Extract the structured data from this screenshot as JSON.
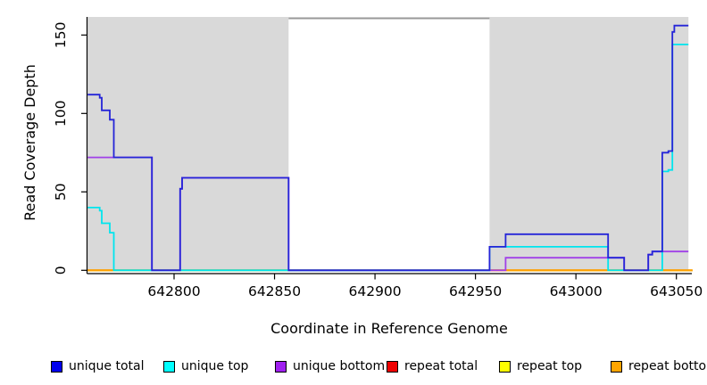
{
  "figure": {
    "background": "#FFFFFF",
    "axis_color": "#000000",
    "shaded_region_color": "#D9D9D9",
    "shaded_regions": [
      {
        "from": 642757,
        "to": 642857
      },
      {
        "from": 642957,
        "to": 643056
      }
    ],
    "offscale_line": {
      "from": 642857,
      "to": 642957,
      "color": "#999999"
    },
    "baseline_segments": [
      {
        "from": 642757,
        "to": 642770,
        "color": "#FFA200"
      },
      {
        "from": 642770,
        "to": 642957,
        "color": "#8CDC8C"
      },
      {
        "from": 642957,
        "to": 643058,
        "color": "#FFA200"
      }
    ]
  },
  "chart_data": {
    "type": "line",
    "step": "after",
    "title": "",
    "xlabel": "Coordinate in Reference Genome",
    "ylabel": "Read Coverage Depth",
    "xlim": [
      642757,
      643058
    ],
    "ylim": [
      0,
      162
    ],
    "x_ticks": [
      642800,
      642850,
      642900,
      642950,
      643000,
      643050
    ],
    "y_ticks": [
      0,
      50,
      100,
      150
    ],
    "grid": false,
    "legend_position": "bottom",
    "series": [
      {
        "name": "unique total",
        "color": "#2525D8",
        "points": [
          [
            642757,
            112
          ],
          [
            642763,
            110
          ],
          [
            642764,
            102
          ],
          [
            642768,
            96
          ],
          [
            642770,
            72
          ],
          [
            642789,
            0
          ],
          [
            642803,
            52
          ],
          [
            642804,
            59
          ],
          [
            642857,
            0
          ],
          [
            642957,
            15
          ],
          [
            642965,
            23
          ],
          [
            643016,
            8
          ],
          [
            643024,
            0
          ],
          [
            643036,
            10
          ],
          [
            643038,
            12
          ],
          [
            643043,
            75
          ],
          [
            643046,
            76
          ],
          [
            643048,
            152
          ],
          [
            643049,
            156
          ],
          [
            643056,
            156
          ]
        ]
      },
      {
        "name": "unique top",
        "color": "#00E5EE",
        "points": [
          [
            642757,
            40
          ],
          [
            642763,
            38
          ],
          [
            642764,
            30
          ],
          [
            642768,
            24
          ],
          [
            642770,
            0
          ],
          [
            642957,
            15
          ],
          [
            643016,
            0
          ],
          [
            643043,
            63
          ],
          [
            643046,
            64
          ],
          [
            643048,
            144
          ],
          [
            643056,
            144
          ]
        ]
      },
      {
        "name": "unique bottom",
        "color": "#A040E8",
        "points": [
          [
            642757,
            72
          ],
          [
            642789,
            0
          ],
          [
            642803,
            52
          ],
          [
            642804,
            59
          ],
          [
            642857,
            0
          ],
          [
            642965,
            8
          ],
          [
            643024,
            0
          ],
          [
            643036,
            10
          ],
          [
            643038,
            12
          ],
          [
            643056,
            12
          ]
        ]
      },
      {
        "name": "repeat total",
        "color": "#EE0000",
        "points": [
          [
            642757,
            0
          ],
          [
            643058,
            0
          ]
        ]
      },
      {
        "name": "repeat top",
        "color": "#FFFF00",
        "points": [
          [
            642757,
            0
          ],
          [
            643058,
            0
          ]
        ]
      },
      {
        "name": "repeat bottom",
        "color": "#FFA500",
        "points": [
          [
            642757,
            0
          ],
          [
            643058,
            0
          ]
        ]
      }
    ]
  },
  "legend": {
    "items": [
      {
        "label": "unique total",
        "color": "#0000EE"
      },
      {
        "label": "unique top",
        "color": "#00FFFF"
      },
      {
        "label": "unique bottom",
        "color": "#A020F0"
      },
      {
        "label": "repeat total",
        "color": "#EE0000"
      },
      {
        "label": "repeat top",
        "color": "#FFFF00"
      },
      {
        "label": "repeat bottom",
        "color": "#FFA500"
      }
    ]
  }
}
